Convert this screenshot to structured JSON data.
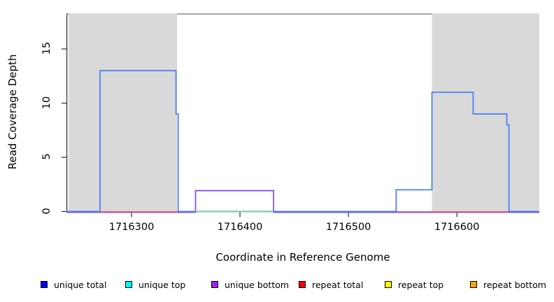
{
  "chart_data": {
    "type": "line",
    "subtype": "step-coverage-plot",
    "title": "",
    "xlabel": "Coordinate in Reference Genome",
    "ylabel": "Read Coverage Depth",
    "xlim": [
      1716240,
      1716676
    ],
    "ylim": [
      0,
      18.2
    ],
    "x_ticks": [
      1716300,
      1716400,
      1716500,
      1716600
    ],
    "y_ticks": [
      0,
      5,
      10,
      15
    ],
    "grid": false,
    "legend_position": "bottom",
    "shaded_regions": [
      {
        "name": "repeat-region-left",
        "from": 1716242,
        "to": 1716342
      },
      {
        "name": "repeat-region-right",
        "from": 1716577,
        "to": 1716676
      }
    ],
    "series": [
      {
        "name": "unique bottom",
        "line_color": "#8455e8",
        "steps": [
          [
            1716240,
            0
          ],
          [
            1716359,
            2
          ],
          [
            1716431,
            0
          ]
        ]
      },
      {
        "name": "unique total",
        "line_color": "#4a80f2",
        "steps": [
          [
            1716240,
            0
          ],
          [
            1716271,
            13
          ],
          [
            1716341,
            9
          ],
          [
            1716343,
            0
          ],
          [
            1716544,
            2
          ],
          [
            1716577,
            11
          ],
          [
            1716615,
            9
          ],
          [
            1716646,
            8
          ],
          [
            1716648,
            0
          ]
        ]
      }
    ],
    "baseline_segments": [
      {
        "name": "unique top / repeat top overlap",
        "color": "#8bd98b",
        "value": 0,
        "ranges": [
          [
            1716359,
            1716431
          ]
        ]
      },
      {
        "name": "repeat total",
        "color": "#e25c6e",
        "value": 0,
        "ranges": [
          [
            1716271,
            1716343
          ],
          [
            1716544,
            1716648
          ]
        ]
      }
    ],
    "legend": [
      {
        "label": "unique total",
        "color": "#0000FF"
      },
      {
        "label": "unique top",
        "color": "#00FFFF"
      },
      {
        "label": "unique bottom",
        "color": "#A020F0"
      },
      {
        "label": "repeat total",
        "color": "#FF0000"
      },
      {
        "label": "repeat top",
        "color": "#FFFF00"
      },
      {
        "label": "repeat bottom",
        "color": "#FFA500"
      }
    ],
    "colors": {
      "shaded_region": "#d9d9d9",
      "frame": "#6e6e6e",
      "axis": "#2a2a2a"
    }
  }
}
